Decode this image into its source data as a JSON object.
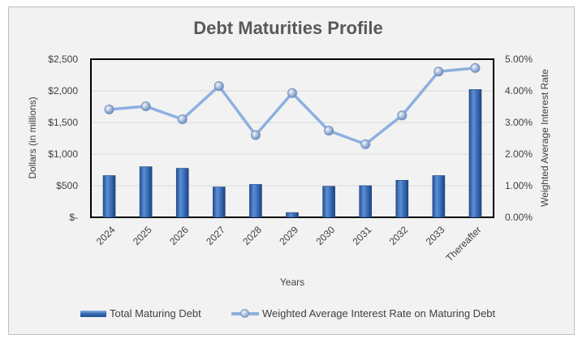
{
  "chart_data": {
    "type": "bar+line",
    "title": "Debt Maturities Profile",
    "xlabel": "Years",
    "ylabel": "Dollars (in millions)",
    "y2label": "Weighted Average Interest Rate",
    "categories": [
      "2024",
      "2025",
      "2026",
      "2027",
      "2028",
      "2029",
      "2030",
      "2031",
      "2032",
      "2033",
      "Thereafter"
    ],
    "ylim": [
      0,
      2500
    ],
    "y2lim": [
      0,
      5
    ],
    "yticks": [
      0,
      500,
      1000,
      1500,
      2000,
      2500
    ],
    "ytick_labels": [
      "$-",
      "$500",
      "$1,000",
      "$1,500",
      "$2,000",
      "$2,500"
    ],
    "y2ticks": [
      0,
      1,
      2,
      3,
      4,
      5
    ],
    "y2tick_labels": [
      "0.00%",
      "1.00%",
      "2.00%",
      "3.00%",
      "4.00%",
      "5.00%"
    ],
    "series": [
      {
        "name": "Total Maturing Debt",
        "kind": "bar",
        "axis": "left",
        "color": "#3a6db8",
        "values": [
          660,
          800,
          775,
          480,
          520,
          75,
          490,
          500,
          585,
          660,
          2020
        ]
      },
      {
        "name": "Weighted Average Interest Rate on Maturing Debt",
        "kind": "line",
        "axis": "right",
        "color": "#8db0e0",
        "values": [
          3.41,
          3.51,
          3.1,
          4.15,
          2.6,
          3.93,
          2.74,
          2.31,
          3.22,
          4.61,
          4.72
        ]
      }
    ],
    "grid": true,
    "legend": "bottom"
  }
}
